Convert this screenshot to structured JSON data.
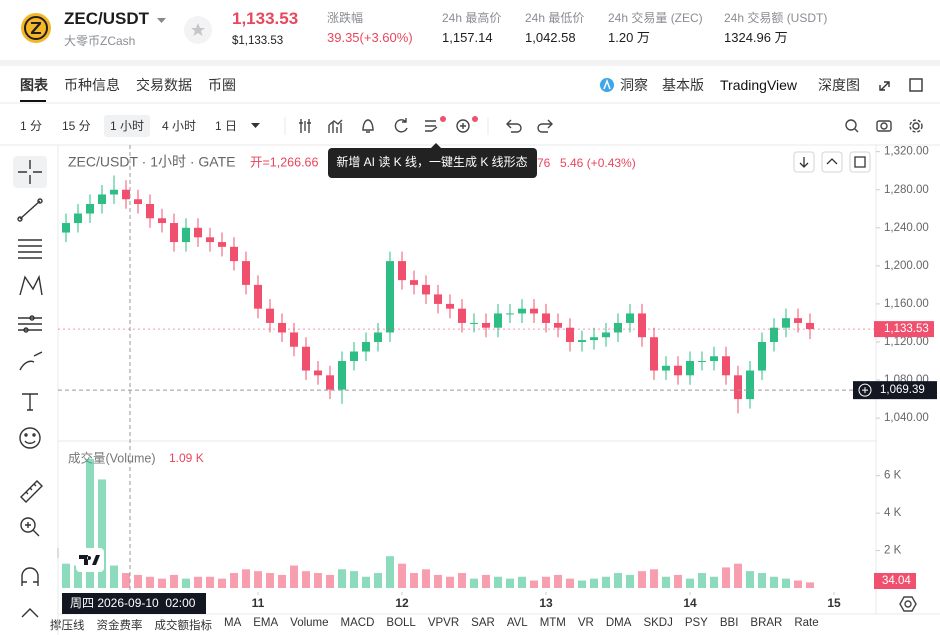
{
  "header": {
    "symbol": "ZEC/USDT",
    "coin_name": "大零币ZCash",
    "price": "1,133.53",
    "price_usd": "$1,133.53",
    "stats": [
      {
        "label": "涨跌幅",
        "value": "39.35(+3.60%)"
      },
      {
        "label": "24h 最高价",
        "value": "1,157.14"
      },
      {
        "label": "24h 最低价",
        "value": "1,042.58"
      },
      {
        "label": "24h 交易量 (ZEC)",
        "value": "1.20 万"
      },
      {
        "label": "24h 交易额 (USDT)",
        "value": "1324.96 万"
      }
    ]
  },
  "tabs": [
    "图表",
    "币种信息",
    "交易数据",
    "币圈"
  ],
  "views": [
    "洞察",
    "基本版",
    "TradingView",
    "深度图"
  ],
  "intervals": [
    "1 分",
    "15 分",
    "1 小时",
    "4 小时",
    "1 日"
  ],
  "tooltip": "新增 AI 读 K 线，一键生成 K 线形态",
  "indicators": [
    "撑压线",
    "资金费率",
    "成交额指标",
    "MA",
    "EMA",
    "Volume",
    "MACD",
    "BOLL",
    "VPVR",
    "SAR",
    "AVL",
    "MTM",
    "VR",
    "DMA",
    "SKDJ",
    "PSY",
    "BBI",
    "BRAR",
    "Rate"
  ],
  "chart_data": {
    "type": "candlestick",
    "legend_symbol": "ZEC/USDT · 1小时 · GATE",
    "legend_open": "开=1,266.66",
    "legend_hidden": "76",
    "legend_change": "5.46 (+0.43%)",
    "volume_title": "成交量(Volume)",
    "volume_current": "1.09 K",
    "crosshair_time": "周四 2026-09-10  02:00",
    "up_color": "#2ebd85",
    "down_color": "#f0506e",
    "categories": [
      null,
      null,
      null,
      null,
      null,
      null,
      null,
      null,
      null,
      null,
      null,
      null,
      null,
      null,
      null,
      null,
      null,
      null,
      null,
      null,
      null,
      null,
      null,
      null,
      null,
      null,
      null,
      null,
      null,
      null,
      null,
      null,
      null,
      null,
      null,
      null,
      null,
      null,
      null,
      null,
      null,
      null,
      null,
      null,
      null,
      null,
      null,
      null,
      null,
      null,
      null,
      null,
      null,
      null,
      null,
      null,
      null,
      null,
      null,
      null,
      null,
      null,
      null
    ],
    "open": [
      1235,
      1245,
      1255,
      1265,
      1275,
      1280,
      1270,
      1265,
      1250,
      1245,
      1225,
      1240,
      1230,
      1225,
      1220,
      1205,
      1180,
      1155,
      1140,
      1130,
      1115,
      1090,
      1085,
      1070,
      1100,
      1110,
      1120,
      1130,
      1205,
      1185,
      1180,
      1170,
      1160,
      1155,
      1140,
      1140,
      1135,
      1150,
      1150,
      1155,
      1150,
      1140,
      1135,
      1120,
      1122,
      1125,
      1130,
      1140,
      1150,
      1125,
      1090,
      1095,
      1085,
      1100,
      1100,
      1105,
      1085,
      1060,
      1090,
      1120,
      1135,
      1145,
      1140
    ],
    "high": [
      1255,
      1265,
      1275,
      1285,
      1295,
      1290,
      1280,
      1275,
      1260,
      1255,
      1250,
      1250,
      1240,
      1235,
      1230,
      1215,
      1190,
      1165,
      1150,
      1140,
      1125,
      1100,
      1095,
      1110,
      1120,
      1130,
      1140,
      1215,
      1215,
      1195,
      1190,
      1180,
      1170,
      1165,
      1150,
      1150,
      1160,
      1160,
      1165,
      1165,
      1160,
      1150,
      1145,
      1132,
      1135,
      1140,
      1150,
      1160,
      1160,
      1135,
      1105,
      1105,
      1110,
      1110,
      1115,
      1115,
      1095,
      1100,
      1130,
      1145,
      1155,
      1155,
      1150
    ],
    "low": [
      1225,
      1235,
      1245,
      1255,
      1265,
      1260,
      1255,
      1240,
      1235,
      1215,
      1215,
      1220,
      1215,
      1210,
      1195,
      1170,
      1145,
      1130,
      1120,
      1105,
      1080,
      1075,
      1060,
      1055,
      1090,
      1100,
      1110,
      1120,
      1175,
      1170,
      1160,
      1150,
      1145,
      1130,
      1130,
      1125,
      1125,
      1140,
      1140,
      1140,
      1130,
      1125,
      1110,
      1110,
      1112,
      1115,
      1120,
      1130,
      1115,
      1080,
      1080,
      1075,
      1075,
      1090,
      1090,
      1075,
      1045,
      1050,
      1080,
      1110,
      1125,
      1130,
      1123
    ],
    "close": [
      1245,
      1255,
      1265,
      1275,
      1280,
      1270,
      1265,
      1250,
      1245,
      1225,
      1240,
      1230,
      1225,
      1220,
      1205,
      1180,
      1155,
      1140,
      1130,
      1115,
      1090,
      1085,
      1070,
      1100,
      1110,
      1120,
      1130,
      1205,
      1185,
      1180,
      1170,
      1160,
      1155,
      1140,
      1140,
      1135,
      1150,
      1150,
      1155,
      1150,
      1140,
      1135,
      1120,
      1122,
      1125,
      1130,
      1140,
      1150,
      1125,
      1090,
      1095,
      1085,
      1100,
      1100,
      1105,
      1085,
      1060,
      1090,
      1120,
      1135,
      1145,
      1140,
      1133.53
    ],
    "volume": [
      1.3,
      1.2,
      6.9,
      5.8,
      1.2,
      0.8,
      0.7,
      0.6,
      0.5,
      0.7,
      0.5,
      0.6,
      0.6,
      0.5,
      0.8,
      1.0,
      0.9,
      0.8,
      0.7,
      1.2,
      0.9,
      0.8,
      0.7,
      1.0,
      0.9,
      0.6,
      0.8,
      1.7,
      1.3,
      0.8,
      1.0,
      0.7,
      0.6,
      0.8,
      0.5,
      0.7,
      0.6,
      0.5,
      0.6,
      0.4,
      0.6,
      0.7,
      0.5,
      0.4,
      0.5,
      0.6,
      0.8,
      0.7,
      0.9,
      1.0,
      0.6,
      0.7,
      0.5,
      0.8,
      0.6,
      1.1,
      1.3,
      0.9,
      0.8,
      0.6,
      0.5,
      0.4,
      0.3
    ],
    "ylim": [
      1017,
      1327
    ],
    "yticks": [
      {
        "value": 1040,
        "label": "1,040.00"
      },
      {
        "value": 1080,
        "label": "1,080.00"
      },
      {
        "value": 1120,
        "label": "1,120.00"
      },
      {
        "value": 1160,
        "label": "1,160.00"
      },
      {
        "value": 1200,
        "label": "1,200.00"
      },
      {
        "value": 1240,
        "label": "1,240.00"
      },
      {
        "value": 1280,
        "label": "1,280.00"
      },
      {
        "value": 1320,
        "label": "1,320.00"
      }
    ],
    "vol_ylim": [
      0,
      7.8
    ],
    "vol_yticks": [
      {
        "value": 2,
        "label": "2 K"
      },
      {
        "value": 4,
        "label": "4 K"
      },
      {
        "value": 6,
        "label": "6 K"
      }
    ],
    "xticks": [
      {
        "value": 16,
        "label": "11"
      },
      {
        "value": 28,
        "label": "12"
      },
      {
        "value": 40,
        "label": "13"
      },
      {
        "value": 52,
        "label": "14"
      },
      {
        "value": 64,
        "label": "15"
      }
    ],
    "last_price": {
      "value": 1133.53,
      "label": "1,133.53"
    },
    "crosshair_price": {
      "value": 1069.39,
      "label": "1,069.39"
    },
    "last_volume": 34.04
  }
}
